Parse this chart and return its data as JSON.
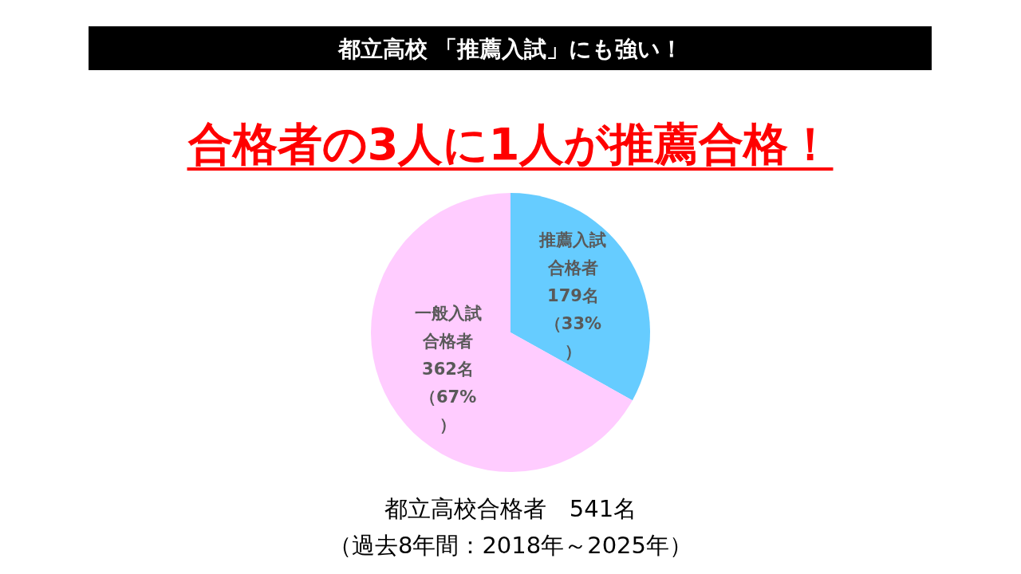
{
  "chart_data": {
    "type": "pie",
    "title": "都立高校 「推薦入試」にも強い！",
    "subtitle": "合格者の3人に1人が推薦合格！",
    "categories": [
      "推薦入試合格者",
      "一般入試合格者"
    ],
    "values": [
      179,
      362
    ],
    "colors": [
      "#66ccff",
      "#ffccff"
    ],
    "value_labels": [
      "179名（33%）",
      "362名（67%）"
    ],
    "annotations": [
      "都立高校合格者　541名",
      "（過去8年間：2018年～2025年）"
    ]
  }
}
